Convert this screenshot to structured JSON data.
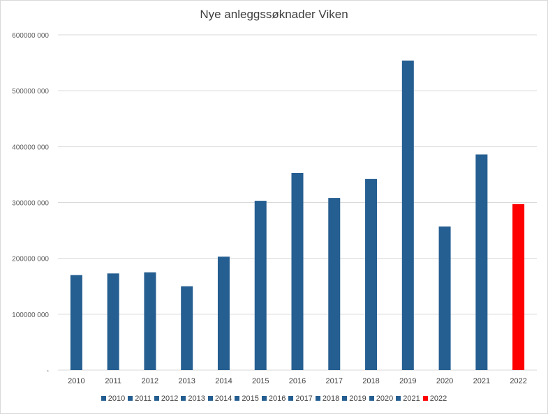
{
  "chart_data": {
    "type": "bar",
    "title": "Nye anleggssøknader Viken",
    "xlabel": "",
    "ylabel": "",
    "categories": [
      "2010",
      "2011",
      "2012",
      "2013",
      "2014",
      "2015",
      "2016",
      "2017",
      "2018",
      "2019",
      "2020",
      "2021",
      "2022"
    ],
    "values": [
      170000,
      173000,
      175000,
      150000,
      203000,
      303000,
      353000,
      308000,
      342000,
      554000,
      257000,
      386000,
      297000
    ],
    "ylim": [
      0,
      600000
    ],
    "yticks": [
      0,
      100000,
      200000,
      300000,
      400000,
      500000,
      600000
    ],
    "ytick_labels": [
      "-",
      "100000 000",
      "200000 000",
      "300000 000",
      "400000 000",
      "500000 000",
      "600000 000"
    ],
    "grid": true,
    "legend_position": "bottom",
    "colors": [
      "#255e91",
      "#255e91",
      "#255e91",
      "#255e91",
      "#255e91",
      "#255e91",
      "#255e91",
      "#255e91",
      "#255e91",
      "#255e91",
      "#255e91",
      "#255e91",
      "#ff0000"
    ]
  }
}
